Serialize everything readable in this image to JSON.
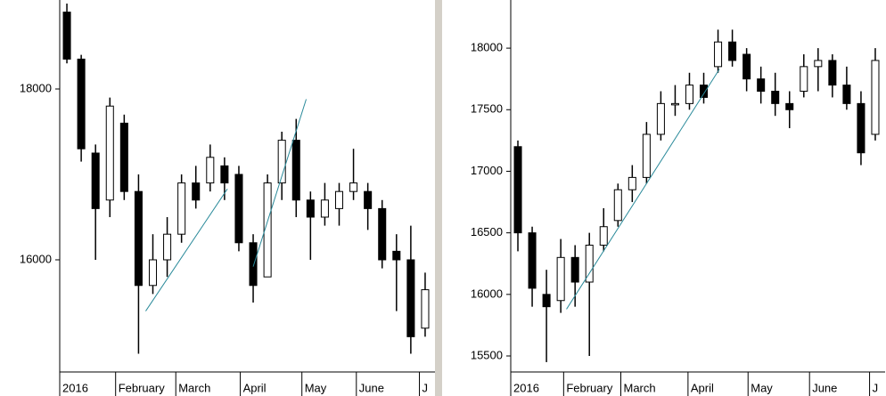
{
  "chart_data": [
    {
      "type": "candlestick",
      "xlim": [
        0,
        26
      ],
      "xticks": [
        {
          "value": 0,
          "label": "2016"
        },
        {
          "value": 3.9,
          "label": "February"
        },
        {
          "value": 8.1,
          "label": "March"
        },
        {
          "value": 12.6,
          "label": "April"
        },
        {
          "value": 16.9,
          "label": "May"
        },
        {
          "value": 20.7,
          "label": "June"
        },
        {
          "value": 25.1,
          "label": "J"
        }
      ],
      "ylim": [
        14687,
        19042
      ],
      "yticks": [
        16000,
        18000
      ],
      "up_color": "#ffffff",
      "down_color": "#000000",
      "trend_color": "#2a8a9a",
      "open": [
        18900,
        18350,
        17250,
        16700,
        17600,
        16800,
        15700,
        16000,
        16300,
        16900,
        16900,
        17100,
        17000,
        16200,
        15800,
        16900,
        17400,
        16700,
        16500,
        16600,
        16800,
        16800,
        16600,
        16100,
        16000,
        15200
      ],
      "high": [
        19000,
        18400,
        17350,
        17900,
        17700,
        17000,
        16300,
        16500,
        17000,
        17100,
        17350,
        17200,
        17100,
        16300,
        17000,
        17500,
        17650,
        16800,
        16900,
        16900,
        17300,
        16900,
        16700,
        16300,
        16400,
        15850
      ],
      "low": [
        18300,
        17150,
        16000,
        16500,
        16700,
        14900,
        15600,
        15800,
        16200,
        16600,
        16800,
        16700,
        16100,
        15500,
        15800,
        16700,
        16500,
        16000,
        16400,
        16400,
        16700,
        16350,
        15900,
        15400,
        14900,
        15100
      ],
      "close": [
        18350,
        17300,
        16600,
        17800,
        16800,
        15700,
        16000,
        16300,
        16900,
        16700,
        17200,
        16900,
        16200,
        15700,
        16900,
        17400,
        16700,
        16500,
        16700,
        16800,
        16900,
        16600,
        16000,
        16000,
        15100,
        15650
      ],
      "trend_lines": [
        {
          "x": [
            6.0,
            11.7
          ],
          "y": [
            15400,
            16830
          ]
        },
        {
          "x": [
            13.5,
            17.2
          ],
          "y": [
            15920,
            17880
          ]
        }
      ]
    },
    {
      "type": "candlestick",
      "xlim": [
        0,
        26
      ],
      "xticks": [
        {
          "value": 0,
          "label": "2016"
        },
        {
          "value": 3.7,
          "label": "February"
        },
        {
          "value": 7.7,
          "label": "March"
        },
        {
          "value": 12.4,
          "label": "April"
        },
        {
          "value": 16.6,
          "label": "May"
        },
        {
          "value": 20.9,
          "label": "June"
        },
        {
          "value": 25.1,
          "label": "J"
        }
      ],
      "ylim": [
        15370,
        18391
      ],
      "yticks": [
        15500,
        16000,
        16500,
        17000,
        17500,
        18000
      ],
      "up_color": "#ffffff",
      "down_color": "#000000",
      "trend_color": "#2a8a9a",
      "open": [
        17200,
        16500,
        16000,
        15950,
        16300,
        16100,
        16400,
        16600,
        16850,
        16950,
        17300,
        17550,
        17550,
        17700,
        17850,
        18050,
        17950,
        17750,
        17650,
        17550,
        17650,
        17850,
        17900,
        17700,
        17550,
        17300
      ],
      "high": [
        17250,
        16550,
        16200,
        16450,
        16400,
        16500,
        16700,
        16900,
        17050,
        17400,
        17650,
        17700,
        17800,
        17800,
        18150,
        18150,
        18000,
        17850,
        17800,
        17650,
        17950,
        18000,
        17950,
        17850,
        17650,
        18000
      ],
      "low": [
        16350,
        15900,
        15450,
        15850,
        15900,
        15500,
        16350,
        16550,
        16750,
        16900,
        17250,
        17450,
        17500,
        17550,
        17800,
        17850,
        17650,
        17550,
        17450,
        17350,
        17600,
        17650,
        17600,
        17500,
        17050,
        17250
      ],
      "close": [
        16500,
        16050,
        15900,
        16300,
        16100,
        16400,
        16550,
        16850,
        16950,
        17300,
        17550,
        17550,
        17700,
        17600,
        18050,
        17900,
        17750,
        17650,
        17550,
        17500,
        17850,
        17900,
        17700,
        17550,
        17150,
        17900
      ],
      "trend_lines": [
        {
          "x": [
            3.9,
            14.6
          ],
          "y": [
            15880,
            17830
          ]
        }
      ]
    }
  ]
}
